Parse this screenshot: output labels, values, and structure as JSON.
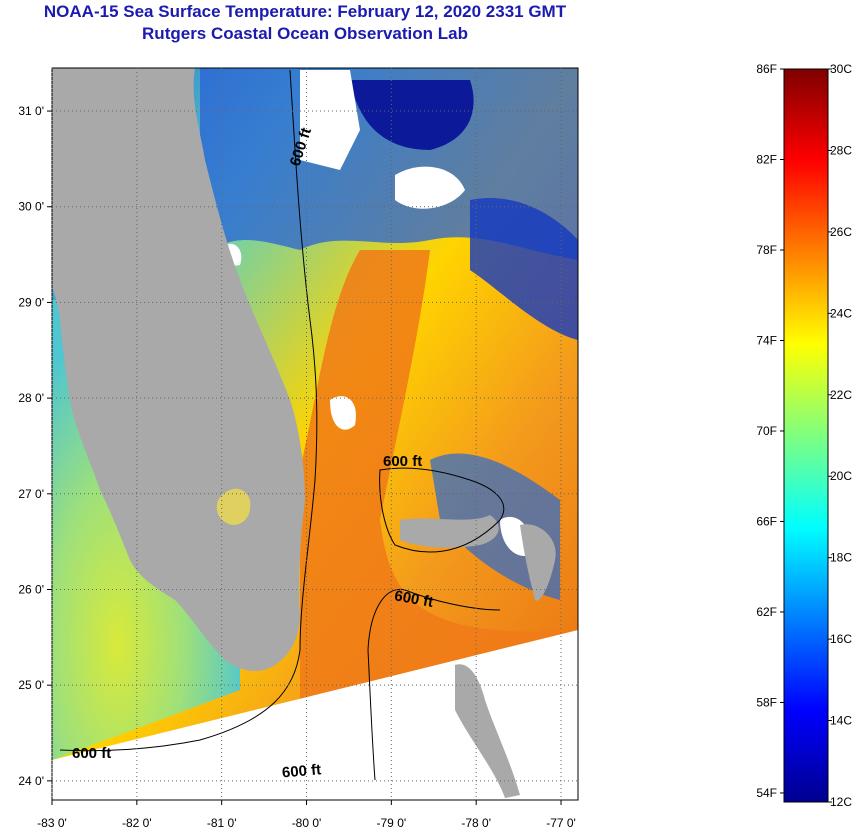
{
  "header": {
    "title": "NOAA-15 Sea Surface Temperature:  February 12, 2020 2331 GMT",
    "subtitle": "Rutgers Coastal Ocean Observation Lab"
  },
  "map": {
    "lon_range": [
      -83,
      -76.8
    ],
    "lat_range": [
      23.8,
      31.45
    ],
    "x_ticks": [
      {
        "value": -83,
        "label": "-83 0'"
      },
      {
        "value": -82,
        "label": "-82 0'"
      },
      {
        "value": -81,
        "label": "-81 0'"
      },
      {
        "value": -80,
        "label": "-80 0'"
      },
      {
        "value": -79,
        "label": "-79 0'"
      },
      {
        "value": -78,
        "label": "-78 0'"
      },
      {
        "value": -77,
        "label": "-77 0'"
      }
    ],
    "y_ticks": [
      {
        "value": 24,
        "label": "24 0'"
      },
      {
        "value": 25,
        "label": "25 0'"
      },
      {
        "value": 26,
        "label": "26 0'"
      },
      {
        "value": 27,
        "label": "27 0'"
      },
      {
        "value": 28,
        "label": "28 0'"
      },
      {
        "value": 29,
        "label": "29 0'"
      },
      {
        "value": 30,
        "label": "30 0'"
      },
      {
        "value": 31,
        "label": "31 0'"
      }
    ],
    "contour_labels": [
      "600 ft",
      "600 ft",
      "600 ft",
      "600 ft",
      "600 ft"
    ],
    "colors": {
      "land": "#a9a9a9",
      "no_data": "#ffffff",
      "cold": "#1030c8",
      "warm": "#f07818"
    }
  },
  "colorbar": {
    "min_c": 12,
    "max_c": 30,
    "fahrenheit_labels": [
      "86F",
      "82F",
      "78F",
      "74F",
      "70F",
      "66F",
      "62F",
      "58F",
      "54F"
    ],
    "celsius_labels": [
      "30C",
      "28C",
      "26C",
      "24C",
      "22C",
      "20C",
      "18C",
      "16C",
      "14C",
      "12C"
    ],
    "colormap": [
      "#00008f",
      "#0000ff",
      "#007fff",
      "#00ffff",
      "#7fff7f",
      "#ffff00",
      "#ff7f00",
      "#ff0000",
      "#7f0000"
    ]
  }
}
